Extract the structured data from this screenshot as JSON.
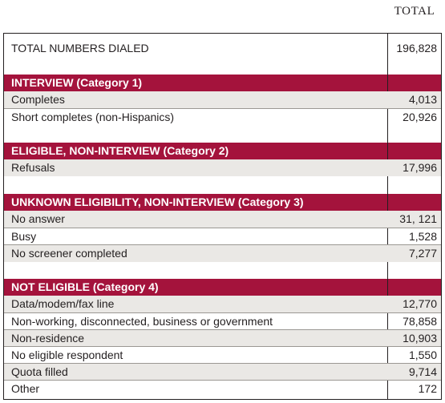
{
  "column_header": "TOTAL",
  "total_row": {
    "label": "TOTAL NUMBERS DIALED",
    "value": "196,828"
  },
  "sections": [
    {
      "title": "INTERVIEW (Category 1)",
      "rows": [
        {
          "label": "Completes",
          "value": "4,013"
        },
        {
          "label": "Short completes (non-Hispanics)",
          "value": "20,926"
        }
      ]
    },
    {
      "title": "ELIGIBLE, NON-INTERVIEW (Category 2)",
      "rows": [
        {
          "label": "Refusals",
          "value": "17,996"
        }
      ]
    },
    {
      "title": "UNKNOWN ELIGIBILITY, NON-INTERVIEW (Category 3)",
      "rows": [
        {
          "label": "No answer",
          "value": "31, 121"
        },
        {
          "label": "Busy",
          "value": "1,528"
        },
        {
          "label": "No screener completed",
          "value": "7,277"
        }
      ]
    },
    {
      "title": "NOT ELIGIBLE (Category 4)",
      "rows": [
        {
          "label": "Data/modem/fax line",
          "value": "12,770"
        },
        {
          "label": "Non-working, disconnected, business or government",
          "value": "78,858"
        },
        {
          "label": "Non-residence",
          "value": "10,903"
        },
        {
          "label": "No eligible respondent",
          "value": "1,550"
        },
        {
          "label": "Quota filled",
          "value": "9,714"
        },
        {
          "label": "Other",
          "value": "172"
        }
      ]
    }
  ],
  "colors": {
    "header_bar": "#a4133c",
    "shaded_row": "#eae8e5",
    "text": "#231f20"
  }
}
